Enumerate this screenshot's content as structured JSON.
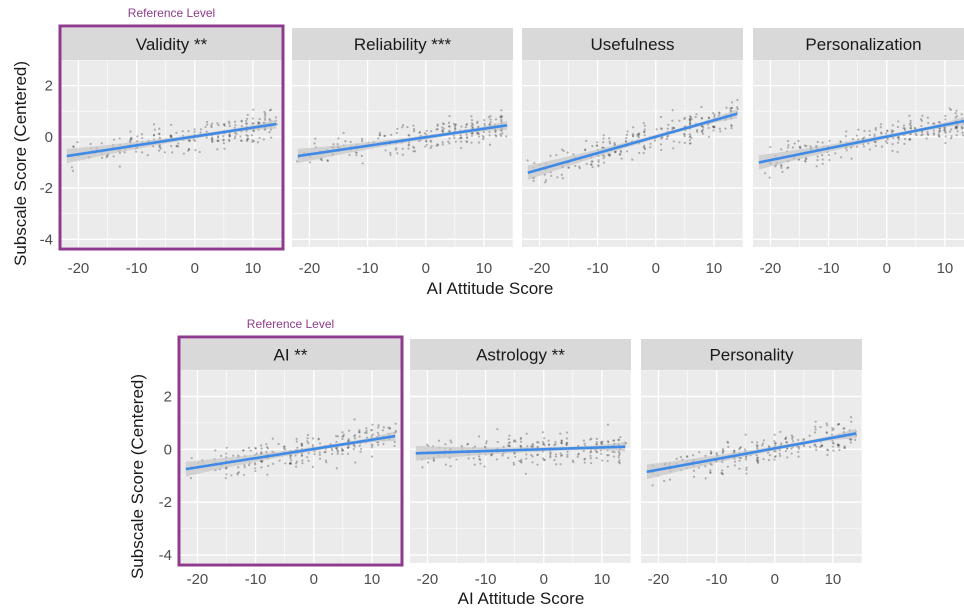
{
  "colors": {
    "panel_bg": "#ebebeb",
    "strip_bg": "#d9d9d9",
    "grid": "#ffffff",
    "line": "#3f8ae6",
    "ribbon": "#c8c8c8",
    "points": "#333333",
    "highlight": "#8e3b8e"
  },
  "chart_data": [
    {
      "type": "scatter",
      "facet_row": "top",
      "xlabel": "AI Attitude Score",
      "ylabel": "Subscale Score (Centered)",
      "xlim": [
        -23,
        15
      ],
      "ylim": [
        -4.3,
        3.0
      ],
      "x_ticks": [
        -20,
        -10,
        0,
        10
      ],
      "x_tick_labels": [
        "-20",
        "-10",
        "0",
        "10"
      ],
      "y_ticks": [
        -4,
        -2,
        0,
        2
      ],
      "y_tick_labels": [
        "-4",
        "-2",
        "0",
        "2"
      ],
      "smooth": "linear fit with confidence band",
      "highlight_label": "Reference Level",
      "panels": [
        {
          "title": "Validity **",
          "highlight": true,
          "fit": {
            "x0": -22,
            "y0": -0.75,
            "x1": 14,
            "y1": 0.5
          }
        },
        {
          "title": "Reliability ***",
          "highlight": false,
          "fit": {
            "x0": -22,
            "y0": -0.75,
            "x1": 14,
            "y1": 0.45
          }
        },
        {
          "title": "Usefulness",
          "highlight": false,
          "fit": {
            "x0": -22,
            "y0": -1.4,
            "x1": 14,
            "y1": 0.9
          }
        },
        {
          "title": "Personalization",
          "highlight": false,
          "fit": {
            "x0": -22,
            "y0": -1.0,
            "x1": 14,
            "y1": 0.65
          }
        }
      ]
    },
    {
      "type": "scatter",
      "facet_row": "bottom",
      "xlabel": "AI Attitude Score",
      "ylabel": "Subscale Score (Centered)",
      "xlim": [
        -23,
        15
      ],
      "ylim": [
        -4.3,
        3.0
      ],
      "x_ticks": [
        -20,
        -10,
        0,
        10
      ],
      "x_tick_labels": [
        "-20",
        "-10",
        "0",
        "10"
      ],
      "y_ticks": [
        -4,
        -2,
        0,
        2
      ],
      "y_tick_labels": [
        "-4",
        "-2",
        "0",
        "2"
      ],
      "smooth": "linear fit with confidence band",
      "highlight_label": "Reference Level",
      "panels": [
        {
          "title": "AI **",
          "highlight": true,
          "fit": {
            "x0": -22,
            "y0": -0.75,
            "x1": 14,
            "y1": 0.5
          }
        },
        {
          "title": "Astrology **",
          "highlight": false,
          "fit": {
            "x0": -22,
            "y0": -0.15,
            "x1": 14,
            "y1": 0.1
          }
        },
        {
          "title": "Personality",
          "highlight": false,
          "fit": {
            "x0": -22,
            "y0": -0.85,
            "x1": 14,
            "y1": 0.6
          }
        }
      ]
    }
  ]
}
